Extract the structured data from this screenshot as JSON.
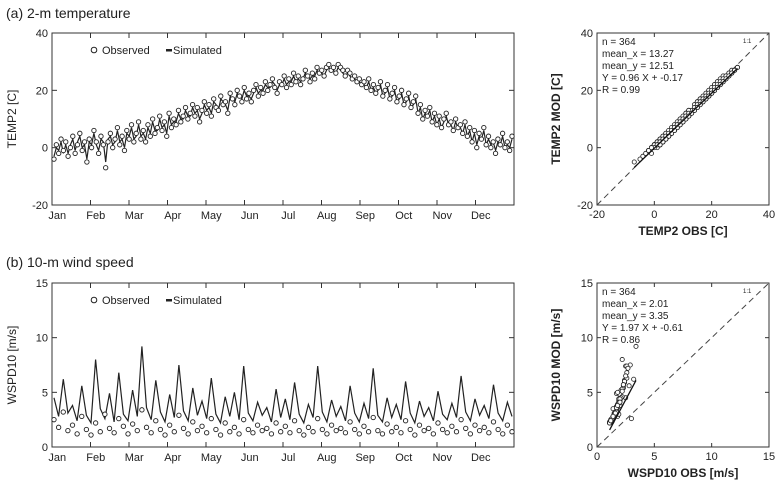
{
  "chart_data": [
    {
      "id": "ts_temp",
      "type": "line",
      "title": "(a) 2-m temperature",
      "ylabel": "TEMP2 [C]",
      "xlabel": "",
      "ylim": [
        -20,
        40
      ],
      "yticks": [
        "-20",
        "0",
        "20",
        "40"
      ],
      "month_labels": [
        "Jan",
        "Feb",
        "Mar",
        "Apr",
        "May",
        "Jun",
        "Jul",
        "Aug",
        "Sep",
        "Oct",
        "Nov",
        "Dec"
      ],
      "days": 364,
      "legend": {
        "observed": "Observed",
        "simulated": "Simulated",
        "position": "top-left"
      },
      "series": [
        {
          "name": "Observed",
          "style": "circles",
          "values": [
            -4,
            1,
            -2,
            3,
            -1,
            2,
            -3,
            0,
            4,
            -2,
            1,
            5,
            -1,
            2,
            -5,
            3,
            0,
            6,
            2,
            -2,
            4,
            1,
            -7,
            2,
            5,
            0,
            3,
            7,
            1,
            4,
            -1,
            6,
            3,
            8,
            2,
            5,
            9,
            3,
            6,
            2,
            8,
            4,
            10,
            5,
            7,
            11,
            6,
            9,
            4,
            12,
            7,
            10,
            8,
            13,
            9,
            11,
            14,
            10,
            12,
            15,
            11,
            14,
            9,
            13,
            16,
            12,
            15,
            11,
            17,
            14,
            13,
            18,
            15,
            16,
            12,
            19,
            17,
            15,
            20,
            18,
            16,
            21,
            17,
            19,
            16,
            20,
            22,
            18,
            21,
            19,
            23,
            20,
            22,
            24,
            21,
            19,
            23,
            22,
            25,
            21,
            24,
            22,
            26,
            23,
            25,
            22,
            24,
            27,
            25,
            23,
            26,
            24,
            28,
            26,
            27,
            25,
            28,
            29,
            27,
            28,
            26,
            29,
            28,
            27,
            25,
            27,
            26,
            24,
            25,
            23,
            24,
            22,
            23,
            21,
            24,
            20,
            22,
            19,
            21,
            23,
            18,
            20,
            22,
            17,
            19,
            21,
            16,
            18,
            20,
            15,
            17,
            19,
            14,
            16,
            18,
            12,
            15,
            10,
            13,
            11,
            14,
            9,
            12,
            8,
            11,
            7,
            10,
            12,
            8,
            9,
            6,
            10,
            7,
            8,
            5,
            9,
            4,
            7,
            2,
            6,
            0,
            5,
            3,
            7,
            1,
            4,
            0,
            2,
            -2,
            3,
            1,
            5,
            0,
            2,
            -1,
            4
          ]
        },
        {
          "name": "Simulated",
          "style": "line",
          "values": [
            -3,
            0,
            -1,
            2,
            -2,
            1,
            -2,
            1,
            3,
            -1,
            2,
            4,
            0,
            1,
            -4,
            2,
            1,
            5,
            1,
            -1,
            3,
            2,
            -5,
            3,
            4,
            1,
            2,
            6,
            2,
            3,
            0,
            5,
            4,
            7,
            3,
            4,
            8,
            4,
            5,
            3,
            7,
            5,
            9,
            6,
            6,
            10,
            7,
            8,
            5,
            11,
            8,
            9,
            9,
            12,
            10,
            10,
            13,
            11,
            11,
            14,
            12,
            13,
            10,
            12,
            15,
            13,
            14,
            12,
            16,
            15,
            13,
            17,
            16,
            15,
            13,
            18,
            17,
            16,
            19,
            18,
            17,
            20,
            18,
            18,
            17,
            19,
            21,
            19,
            20,
            20,
            22,
            21,
            21,
            23,
            22,
            20,
            22,
            22,
            24,
            22,
            23,
            23,
            25,
            23,
            24,
            23,
            24,
            26,
            25,
            24,
            25,
            25,
            27,
            26,
            26,
            25,
            27,
            28,
            27,
            27,
            26,
            28,
            27,
            26,
            25,
            26,
            25,
            24,
            24,
            23,
            23,
            22,
            22,
            21,
            23,
            20,
            21,
            19,
            20,
            22,
            18,
            19,
            21,
            17,
            18,
            20,
            16,
            17,
            19,
            15,
            16,
            18,
            14,
            15,
            17,
            12,
            14,
            10,
            12,
            11,
            13,
            9,
            11,
            8,
            10,
            7,
            9,
            11,
            8,
            8,
            6,
            9,
            7,
            7,
            5,
            8,
            4,
            6,
            2,
            5,
            1,
            4,
            3,
            6,
            1,
            3,
            1,
            2,
            -1,
            2,
            1,
            4,
            0,
            1,
            0,
            3
          ]
        }
      ]
    },
    {
      "id": "scatter_temp",
      "type": "scatter",
      "xlabel": "TEMP2 OBS [C]",
      "ylabel": "TEMP2 MOD [C]",
      "xlim": [
        -20,
        40
      ],
      "ylim": [
        -20,
        40
      ],
      "xticks": [
        "-20",
        "0",
        "20",
        "40"
      ],
      "yticks": [
        "-20",
        "0",
        "20",
        "40"
      ],
      "one_to_one_label": "1:1",
      "stats": [
        "n = 364",
        "mean_x = 13.27",
        "mean_y = 12.51",
        "Y = 0.96 X + -0.17",
        "R = 0.99"
      ],
      "regression": {
        "slope": 0.96,
        "intercept": -0.17
      }
    },
    {
      "id": "ts_wind",
      "type": "line",
      "title": "(b) 10-m wind speed",
      "ylabel": "WSPD10 [m/s]",
      "xlabel": "",
      "ylim": [
        0,
        15
      ],
      "yticks": [
        "0",
        "5",
        "10",
        "15"
      ],
      "month_labels": [
        "Jan",
        "Feb",
        "Mar",
        "Apr",
        "May",
        "Jun",
        "Jul",
        "Aug",
        "Sep",
        "Oct",
        "Nov",
        "Dec"
      ],
      "days": 364,
      "legend": {
        "observed": "Observed",
        "simulated": "Simulated",
        "position": "top-left"
      },
      "series": [
        {
          "name": "Observed",
          "style": "circles",
          "values": [
            2.5,
            1.8,
            3.2,
            1.5,
            2.0,
            1.2,
            2.8,
            1.6,
            1.1,
            2.2,
            1.4,
            3.0,
            1.7,
            1.3,
            2.6,
            1.9,
            1.2,
            2.1,
            1.5,
            3.4,
            1.8,
            1.3,
            2.4,
            1.6,
            1.1,
            2.0,
            1.4,
            2.9,
            1.7,
            1.2,
            2.3,
            1.5,
            1.9,
            1.3,
            2.6,
            1.6,
            1.1,
            2.2,
            1.4,
            1.8,
            1.2,
            2.5,
            1.6,
            1.3,
            2.0,
            1.5,
            1.7,
            1.2,
            2.2,
            1.4,
            1.9,
            1.3,
            2.4,
            1.5,
            1.1,
            1.8,
            1.4,
            2.6,
            1.6,
            1.2,
            2.0,
            1.5,
            1.7,
            1.3,
            2.3,
            1.6,
            1.2,
            1.9,
            1.4,
            2.7,
            1.5,
            1.2,
            2.1,
            1.4,
            1.8,
            1.3,
            2.4,
            1.6,
            1.1,
            2.0,
            1.5,
            1.7,
            1.2,
            2.2,
            1.6,
            1.3,
            1.9,
            1.4,
            2.5,
            1.7,
            1.2,
            2.0,
            1.5,
            1.8,
            1.3,
            2.3,
            1.6,
            1.2,
            2.0,
            1.4
          ]
        },
        {
          "name": "Simulated",
          "style": "line",
          "values": [
            4.5,
            2.8,
            6.2,
            3.1,
            3.8,
            2.4,
            5.6,
            2.9,
            2.2,
            8.0,
            3.5,
            2.6,
            4.9,
            2.3,
            6.8,
            3.0,
            2.4,
            5.2,
            2.8,
            9.2,
            3.6,
            2.5,
            6.1,
            3.2,
            2.3,
            4.8,
            2.7,
            7.5,
            3.3,
            2.4,
            5.4,
            2.9,
            4.2,
            2.6,
            6.3,
            3.0,
            2.2,
            4.6,
            2.8,
            5.0,
            2.5,
            7.4,
            3.1,
            2.4,
            4.1,
            2.9,
            3.6,
            2.3,
            5.3,
            2.7,
            4.4,
            2.5,
            5.9,
            3.0,
            2.2,
            3.9,
            2.7,
            7.4,
            3.2,
            2.3,
            4.3,
            2.8,
            3.7,
            2.4,
            5.6,
            3.1,
            2.3,
            4.0,
            2.6,
            7.2,
            2.9,
            2.3,
            4.5,
            2.7,
            3.9,
            2.5,
            6.0,
            3.1,
            2.2,
            4.2,
            2.8,
            3.6,
            2.4,
            5.1,
            3.0,
            2.5,
            4.0,
            2.7,
            6.5,
            3.2,
            2.4,
            4.4,
            2.9,
            3.8,
            2.6,
            5.7,
            3.1,
            2.4,
            4.1,
            2.8
          ]
        }
      ]
    },
    {
      "id": "scatter_wind",
      "type": "scatter",
      "xlabel": "WSPD10 OBS [m/s]",
      "ylabel": "WSPD10 MOD [m/s]",
      "xlim": [
        0,
        15
      ],
      "ylim": [
        0,
        15
      ],
      "xticks": [
        "0",
        "5",
        "10",
        "15"
      ],
      "yticks": [
        "0",
        "5",
        "10",
        "15"
      ],
      "one_to_one_label": "1:1",
      "stats": [
        "n = 364",
        "mean_x = 2.01",
        "mean_y = 3.35",
        "Y = 1.97 X + -0.61",
        "R = 0.86"
      ],
      "regression": {
        "slope": 1.97,
        "intercept": -0.61
      }
    }
  ]
}
